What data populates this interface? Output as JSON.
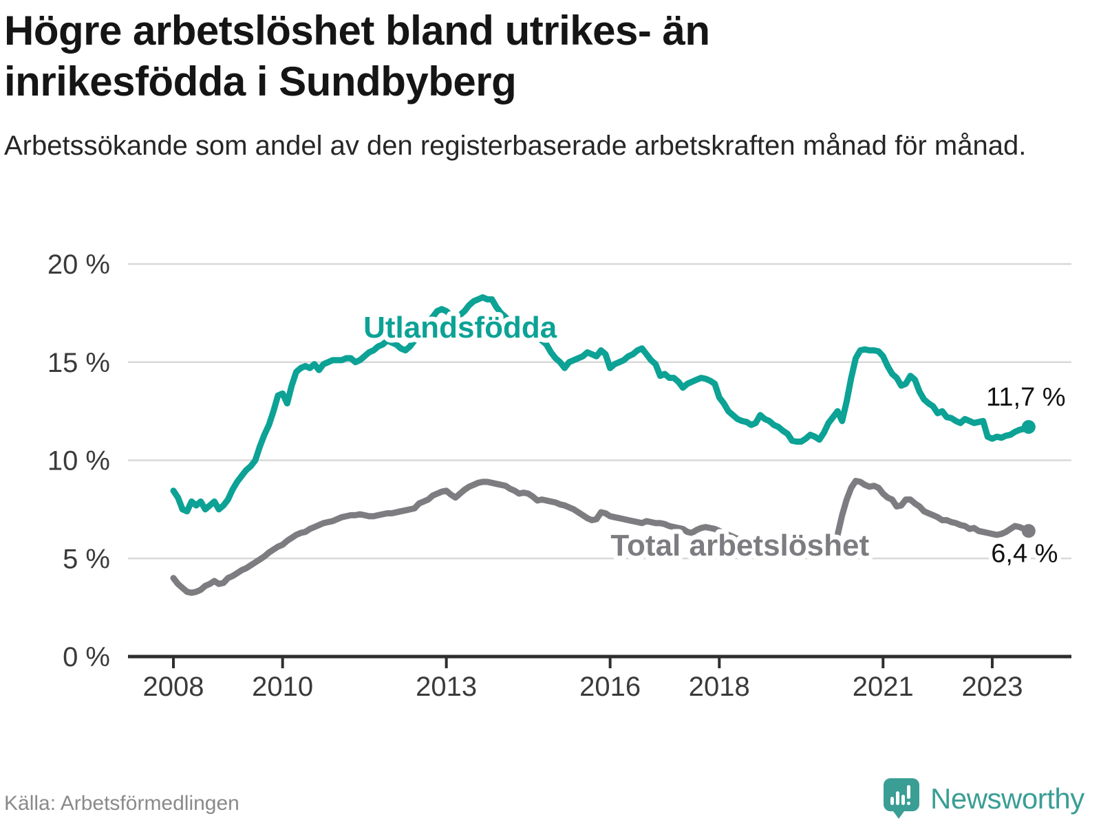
{
  "title": "Högre arbetslöshet bland utrikes- än inrikesfödda i Sundbyberg",
  "subtitle": "Arbetssökande som andel av den registerbaserade arbetskraften månad för månad.",
  "source": "Källa: Arbetsförmedlingen",
  "brand": {
    "name": "Newsworthy",
    "icon": "bar-chart-speech-bubble-icon",
    "color": "#3a9e95"
  },
  "colors": {
    "foreign_born_line": "#0ca295",
    "total_line": "#7d7d81",
    "value_text": "#111111",
    "grid": "#d8d8d8",
    "axis": "#2e2e2e",
    "title_text": "#151515",
    "muted_text": "#8a8a8a"
  },
  "chart_data": {
    "type": "line",
    "title": "Högre arbetslöshet bland utrikes- än inrikesfödda i Sundbyberg",
    "xlabel": "",
    "ylabel": "",
    "x_start_year": 2008,
    "x_step_months": 1,
    "x_axis": {
      "tick_years": [
        2008,
        2010,
        2013,
        2016,
        2018,
        2021,
        2023
      ],
      "tick_labels": [
        "2008",
        "2010",
        "2013",
        "2016",
        "2018",
        "2021",
        "2023"
      ]
    },
    "y_axis": {
      "ticks": [
        0,
        5,
        10,
        15,
        20
      ],
      "tick_labels": [
        "0 %",
        "5 %",
        "10 %",
        "15 %",
        "20 %"
      ],
      "range": [
        0,
        20
      ],
      "grid": true
    },
    "legend_position": "inline-labels",
    "series": [
      {
        "name": "Utlandsfödda",
        "color": "#0ca295",
        "end_value": 11.7,
        "end_label": "11,7 %",
        "label_anchor": {
          "year": 2011.48,
          "value": 16.25
        },
        "values": [
          8.45,
          8.1,
          7.5,
          7.4,
          7.9,
          7.7,
          7.9,
          7.5,
          7.7,
          7.9,
          7.5,
          7.7,
          8.0,
          8.5,
          8.9,
          9.2,
          9.5,
          9.7,
          10.0,
          10.7,
          11.3,
          11.8,
          12.5,
          13.3,
          13.4,
          12.9,
          13.8,
          14.5,
          14.7,
          14.8,
          14.7,
          14.9,
          14.6,
          14.9,
          15.0,
          15.1,
          15.1,
          15.1,
          15.2,
          15.2,
          15.0,
          15.1,
          15.3,
          15.5,
          15.6,
          15.8,
          15.9,
          16.1,
          16.0,
          15.9,
          15.7,
          15.6,
          15.8,
          16.1,
          16.4,
          16.7,
          17.0,
          17.3,
          17.6,
          17.7,
          17.6,
          17.4,
          17.3,
          17.4,
          17.6,
          17.9,
          18.1,
          18.2,
          18.3,
          18.2,
          18.2,
          17.8,
          17.5,
          17.3,
          17.0,
          16.8,
          16.6,
          16.5,
          16.4,
          16.3,
          16.2,
          16.1,
          15.9,
          15.5,
          15.2,
          15.0,
          14.7,
          15.0,
          15.1,
          15.2,
          15.3,
          15.5,
          15.4,
          15.3,
          15.6,
          15.4,
          14.7,
          14.9,
          15.0,
          15.1,
          15.3,
          15.4,
          15.6,
          15.7,
          15.4,
          15.1,
          14.9,
          14.3,
          14.4,
          14.2,
          14.2,
          14.0,
          13.7,
          13.9,
          14.0,
          14.1,
          14.2,
          14.15,
          14.05,
          13.9,
          13.2,
          12.9,
          12.5,
          12.3,
          12.1,
          12.0,
          11.95,
          11.8,
          11.9,
          12.3,
          12.1,
          12.0,
          11.8,
          11.7,
          11.5,
          11.35,
          11.0,
          10.95,
          10.95,
          11.1,
          11.3,
          11.2,
          11.05,
          11.4,
          11.9,
          12.2,
          12.5,
          12.0,
          13.0,
          14.2,
          15.2,
          15.6,
          15.65,
          15.6,
          15.6,
          15.55,
          15.3,
          14.8,
          14.4,
          14.2,
          13.8,
          13.9,
          14.3,
          14.1,
          13.5,
          13.1,
          12.9,
          12.75,
          12.4,
          12.5,
          12.2,
          12.15,
          12.0,
          11.9,
          12.1,
          12.0,
          11.9,
          11.95,
          12.0,
          11.2,
          11.1,
          11.2,
          11.15,
          11.25,
          11.3,
          11.45,
          11.55,
          11.6,
          11.7
        ]
      },
      {
        "name": "Total arbetslöshet",
        "color": "#7d7d81",
        "end_value": 6.4,
        "end_label": "6,4 %",
        "label_anchor": {
          "year": 2016.01,
          "value": 5.15
        },
        "values": [
          4.0,
          3.7,
          3.5,
          3.3,
          3.25,
          3.3,
          3.4,
          3.6,
          3.7,
          3.85,
          3.7,
          3.75,
          4.0,
          4.1,
          4.25,
          4.4,
          4.5,
          4.65,
          4.8,
          4.95,
          5.1,
          5.3,
          5.45,
          5.6,
          5.7,
          5.9,
          6.05,
          6.2,
          6.3,
          6.35,
          6.5,
          6.6,
          6.7,
          6.8,
          6.85,
          6.9,
          7.0,
          7.1,
          7.15,
          7.2,
          7.2,
          7.25,
          7.2,
          7.15,
          7.15,
          7.2,
          7.25,
          7.3,
          7.3,
          7.35,
          7.4,
          7.45,
          7.5,
          7.55,
          7.8,
          7.9,
          8.0,
          8.2,
          8.3,
          8.4,
          8.45,
          8.25,
          8.1,
          8.3,
          8.5,
          8.65,
          8.75,
          8.85,
          8.9,
          8.9,
          8.85,
          8.8,
          8.75,
          8.7,
          8.55,
          8.45,
          8.3,
          8.35,
          8.3,
          8.15,
          7.95,
          8.0,
          7.95,
          7.9,
          7.85,
          7.75,
          7.7,
          7.6,
          7.5,
          7.35,
          7.2,
          7.05,
          6.95,
          7.0,
          7.35,
          7.3,
          7.15,
          7.1,
          7.05,
          7.0,
          6.95,
          6.9,
          6.85,
          6.8,
          6.9,
          6.85,
          6.8,
          6.8,
          6.75,
          6.65,
          6.6,
          6.55,
          6.5,
          6.35,
          6.3,
          6.45,
          6.55,
          6.6,
          6.55,
          6.5,
          6.4,
          6.3,
          6.2,
          6.1,
          6.0,
          5.95,
          5.9,
          5.85,
          5.8,
          5.75,
          5.7,
          5.7,
          5.65,
          5.6,
          5.6,
          5.55,
          5.5,
          5.5,
          5.55,
          5.5,
          5.5,
          5.55,
          5.6,
          5.65,
          5.7,
          5.8,
          6.2,
          7.2,
          8.0,
          8.6,
          8.95,
          8.9,
          8.75,
          8.65,
          8.7,
          8.6,
          8.3,
          8.1,
          8.0,
          7.65,
          7.7,
          8.0,
          8.0,
          7.8,
          7.65,
          7.4,
          7.3,
          7.2,
          7.1,
          6.95,
          6.95,
          6.85,
          6.8,
          6.7,
          6.65,
          6.5,
          6.55,
          6.4,
          6.35,
          6.3,
          6.25,
          6.2,
          6.25,
          6.35,
          6.5,
          6.65,
          6.6,
          6.5,
          6.4
        ]
      }
    ]
  }
}
